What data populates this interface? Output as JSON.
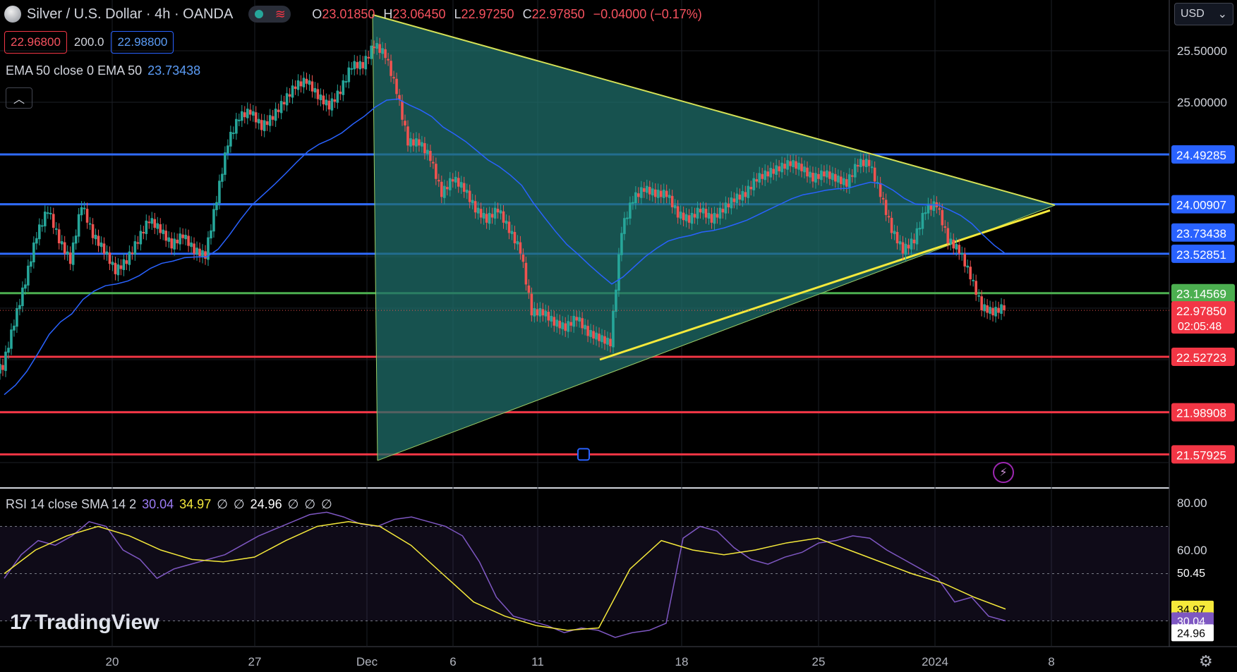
{
  "header": {
    "symbol": "Silver / U.S. Dollar · 4h · OANDA",
    "ohlc": [
      {
        "k": "O",
        "v": "23.01850"
      },
      {
        "k": "H",
        "v": "23.06450"
      },
      {
        "k": "L",
        "v": "22.97250"
      },
      {
        "k": "C",
        "v": "22.97850"
      }
    ],
    "change": "−0.04000 (−0.17%)"
  },
  "trade": {
    "sell": "22.96800",
    "qty": "200.0",
    "buy": "22.98800"
  },
  "ema_legend": {
    "label": "EMA 50 close 0 EMA 50",
    "value": "23.73438"
  },
  "rsi_legend": {
    "label": "RSI 14 close SMA 14 2",
    "rsi": "30.04",
    "sma": "34.97",
    "n1": "∅",
    "n2": "∅",
    "val": "24.96",
    "n3": "∅",
    "n4": "∅",
    "n5": "∅"
  },
  "currency": "USD",
  "brand": "TradingView",
  "colors": {
    "bull": "#26a69a",
    "bear": "#ef5350",
    "blue_level": "#2962ff",
    "red_level": "#f23645",
    "green_level": "#4caf50",
    "triangle_fill": "#1f6e6a",
    "triangle_line": "#d4e157",
    "ema": "#2962ff",
    "rsi": "#7e57c2",
    "rsi_sma": "#f5e93b"
  },
  "chart_data": [
    {
      "type": "candlestick",
      "title": "Silver / U.S. Dollar · 4h · OANDA",
      "ylim": [
        21.35,
        25.8
      ],
      "x_labels": [
        "20",
        "27",
        "Dec",
        "6",
        "11",
        "18",
        "25",
        "2024",
        "8"
      ],
      "y_ticks": [
        "25.50000",
        "25.00000"
      ],
      "price_levels": [
        {
          "value": 24.49285,
          "label": "24.49285",
          "color": "blue"
        },
        {
          "value": 24.00907,
          "label": "24.00907",
          "color": "blue"
        },
        {
          "value": 23.52851,
          "label": "23.52851",
          "color": "blue"
        },
        {
          "value": 23.14569,
          "label": "23.14569",
          "color": "green"
        },
        {
          "value": 22.52723,
          "label": "22.52723",
          "color": "red"
        },
        {
          "value": 21.98908,
          "label": "21.98908",
          "color": "red"
        },
        {
          "value": 21.57925,
          "label": "21.57925",
          "color": "red"
        }
      ],
      "ema": {
        "name": "EMA 50",
        "value": 23.73438,
        "label": "23.73438"
      },
      "last_price": {
        "value": 22.9785,
        "label": "22.97850",
        "countdown": "02:05:48"
      },
      "close_path": [
        22.42,
        22.85,
        23.25,
        23.7,
        23.95,
        23.65,
        23.45,
        24.0,
        23.7,
        23.55,
        23.35,
        23.45,
        23.65,
        23.85,
        23.75,
        23.6,
        23.7,
        23.55,
        23.5,
        24.05,
        24.6,
        24.85,
        24.9,
        24.75,
        24.85,
        25.0,
        25.15,
        25.2,
        25.05,
        24.95,
        25.1,
        25.35,
        25.35,
        25.55,
        25.45,
        25.1,
        24.6,
        24.6,
        24.45,
        24.1,
        24.25,
        24.15,
        23.95,
        23.85,
        23.95,
        23.75,
        23.55,
        22.95,
        22.95,
        22.85,
        22.8,
        22.9,
        22.75,
        22.7,
        22.65,
        23.75,
        24.05,
        24.15,
        24.1,
        24.1,
        23.9,
        23.85,
        23.95,
        23.85,
        23.95,
        24.05,
        24.1,
        24.25,
        24.3,
        24.35,
        24.4,
        24.35,
        24.25,
        24.3,
        24.25,
        24.2,
        24.4,
        24.4,
        24.1,
        23.75,
        23.55,
        23.65,
        23.95,
        24.0,
        23.65,
        23.55,
        23.3,
        23.0,
        22.95,
        23.0
      ],
      "rsi": {
        "ylim": [
          16,
          82
        ],
        "y_ticks": [
          "80.00",
          "60.00"
        ],
        "levels": [
          70,
          50,
          30
        ],
        "labels": {
          "val1": "50.45",
          "sma": "34.97",
          "rsi": "30.04",
          "val2": "24.96"
        },
        "rsi_path": [
          48,
          58,
          64,
          62,
          66,
          72,
          70,
          60,
          56,
          48,
          52,
          54,
          56,
          58,
          62,
          66,
          69,
          72,
          75,
          76,
          74,
          71,
          70,
          73,
          74,
          72,
          70,
          66,
          55,
          40,
          32,
          30,
          28,
          25,
          27,
          26,
          23,
          25,
          26,
          29,
          65,
          70,
          68,
          61,
          56,
          54,
          57,
          59,
          63,
          64,
          66,
          65,
          60,
          56,
          52,
          48,
          38,
          40,
          32,
          30
        ],
        "sma_path": [
          50,
          60,
          66,
          70,
          66,
          60,
          56,
          55,
          57,
          64,
          70,
          72,
          70,
          62,
          50,
          38,
          32,
          28,
          26,
          27,
          52,
          64,
          60,
          58,
          60,
          63,
          65,
          60,
          55,
          50,
          46,
          40,
          35
        ]
      }
    }
  ]
}
